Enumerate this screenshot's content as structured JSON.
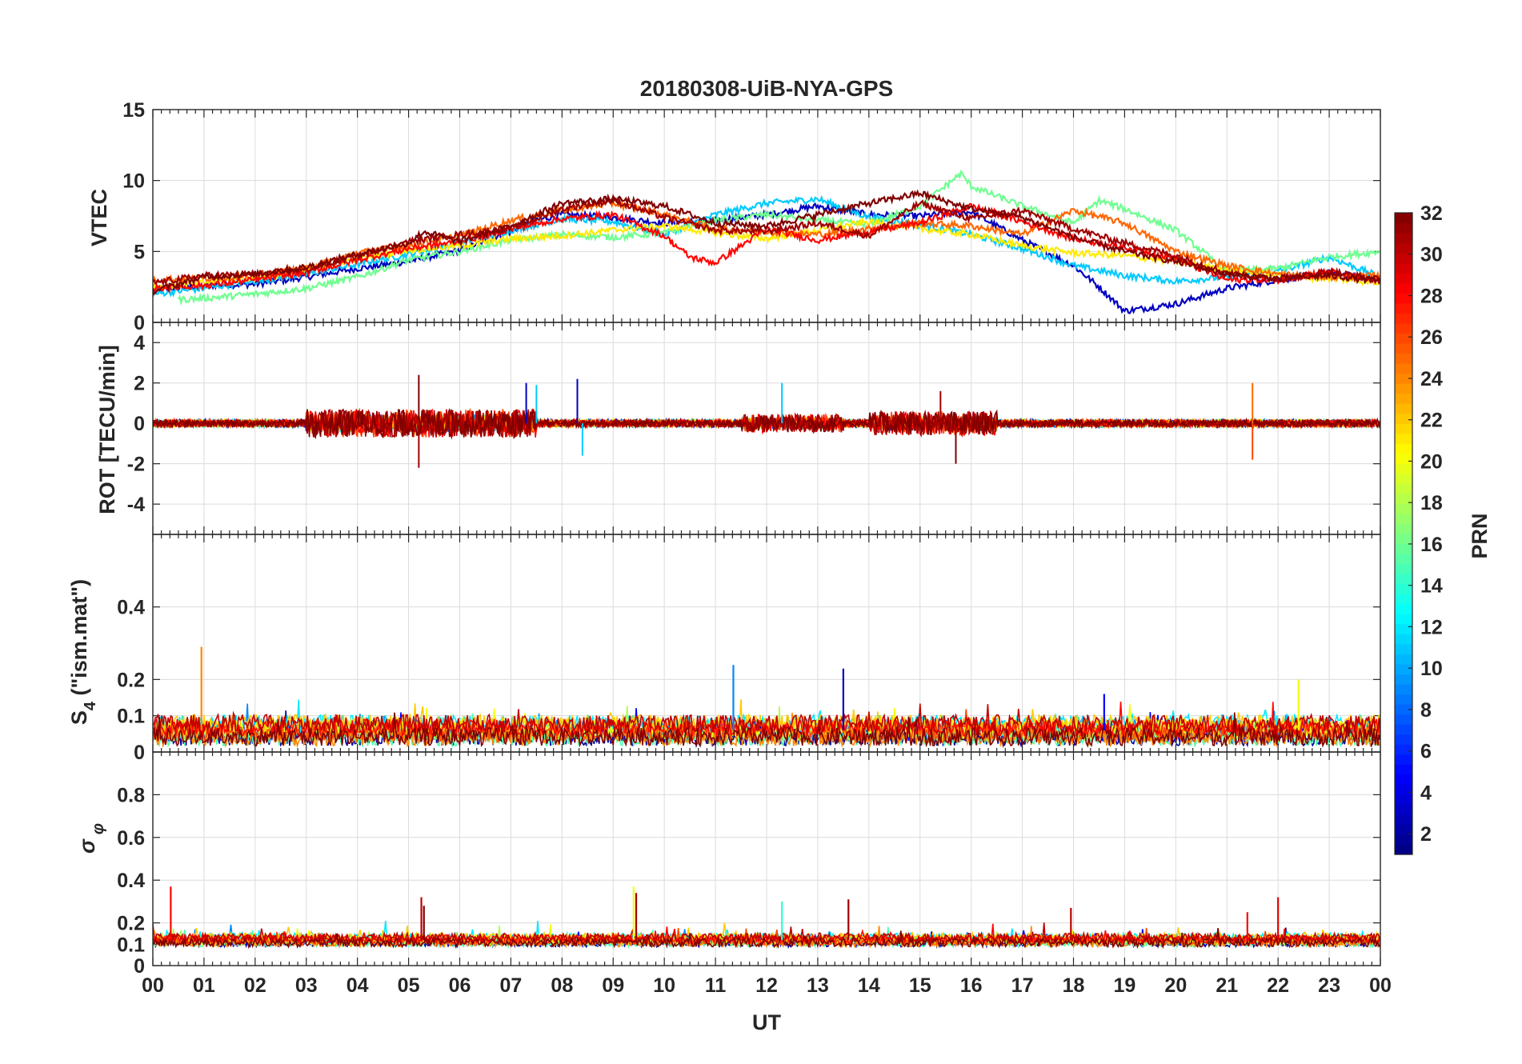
{
  "chart_data": {
    "type": "line",
    "title": "20180308-UiB-NYA-GPS",
    "xlabel": "UT",
    "x_tick_labels": [
      "00",
      "01",
      "02",
      "03",
      "04",
      "05",
      "06",
      "07",
      "08",
      "09",
      "10",
      "11",
      "12",
      "13",
      "14",
      "15",
      "16",
      "17",
      "18",
      "19",
      "20",
      "21",
      "22",
      "23",
      "00"
    ],
    "xlim": [
      0,
      24
    ],
    "panels": [
      {
        "key": "vtec",
        "ylabel": "VTEC",
        "ylim": [
          0,
          15
        ],
        "yticks": [
          0,
          5,
          10,
          15
        ],
        "ytick_labels": [
          "0",
          "5",
          "10",
          "15"
        ],
        "grid": true,
        "series": [
          {
            "prn": 3,
            "x": [
              0,
              1,
              2,
              3,
              4,
              5,
              6,
              7,
              7.5,
              8,
              9,
              10,
              11,
              12,
              13,
              14,
              15,
              16,
              17,
              18,
              18.5,
              19,
              20,
              21,
              22,
              23,
              24
            ],
            "y": [
              2.3,
              2.6,
              2.7,
              3.2,
              3.8,
              4.3,
              5.1,
              6.4,
              7.2,
              7.6,
              7.4,
              7.0,
              7.2,
              7.6,
              8.2,
              7.6,
              7.5,
              7.8,
              5.8,
              4.0,
              2.5,
              0.8,
              1.3,
              2.4,
              3.0,
              3.5,
              3.0
            ]
          },
          {
            "prn": 11,
            "x": [
              0,
              1,
              2,
              3,
              4,
              5,
              6,
              7,
              8,
              9,
              10,
              11,
              12,
              13,
              14,
              15,
              16,
              17,
              18,
              19,
              20,
              21,
              22,
              23,
              24
            ],
            "y": [
              2.0,
              2.4,
              2.9,
              3.4,
              4.1,
              4.8,
              5.6,
              6.5,
              7.3,
              7.1,
              6.2,
              7.6,
              8.4,
              8.7,
              7.4,
              6.9,
              6.2,
              5.2,
              4.0,
              3.3,
              2.9,
              3.2,
              3.6,
              4.6,
              3.2
            ]
          },
          {
            "prn": 16,
            "x": [
              0.5,
              1,
              2,
              3,
              4,
              5,
              6,
              7,
              8,
              9,
              10,
              11,
              12,
              13,
              14,
              15,
              15.8,
              16,
              17,
              18,
              18.5,
              19,
              20,
              21,
              22,
              23,
              24
            ],
            "y": [
              1.6,
              1.7,
              2.0,
              2.4,
              3.2,
              4.4,
              5.0,
              5.8,
              6.2,
              6.0,
              6.3,
              7.2,
              7.6,
              7.2,
              6.9,
              8.2,
              10.5,
              9.6,
              8.2,
              7.0,
              8.6,
              8.0,
              6.5,
              3.6,
              3.8,
              4.6,
              5.0
            ]
          },
          {
            "prn": 21,
            "x": [
              0,
              1,
              2,
              3,
              4,
              5,
              6,
              7,
              8,
              9,
              10,
              11,
              12,
              13,
              14,
              15,
              16,
              17,
              18,
              19,
              20,
              21,
              22,
              23,
              24
            ],
            "y": [
              2.5,
              2.8,
              3.2,
              3.7,
              4.5,
              5.1,
              5.4,
              5.9,
              6.1,
              6.5,
              6.8,
              6.3,
              5.9,
              6.5,
              7.1,
              6.6,
              6.2,
              5.4,
              4.9,
              4.7,
              4.3,
              3.7,
              3.3,
              3.1,
              2.8
            ]
          },
          {
            "prn": 25,
            "x": [
              0,
              1,
              2,
              3,
              4,
              5,
              6,
              7,
              8,
              9,
              10,
              11,
              12,
              13,
              14,
              15,
              16,
              17,
              18,
              19,
              20,
              21,
              22,
              23,
              24
            ],
            "y": [
              3.0,
              3.1,
              3.3,
              3.8,
              4.9,
              5.4,
              6.1,
              7.2,
              7.9,
              8.4,
              7.6,
              6.6,
              6.4,
              6.2,
              6.6,
              7.0,
              6.8,
              6.2,
              7.9,
              7.0,
              5.0,
              4.0,
              3.4,
              3.2,
              3.3
            ]
          },
          {
            "prn": 28,
            "x": [
              0,
              1,
              2,
              3,
              4,
              5,
              6,
              7,
              8,
              9,
              10,
              10.5,
              11,
              12,
              13,
              14,
              15,
              16,
              17,
              18,
              19,
              20,
              21,
              22,
              23,
              24
            ],
            "y": [
              2.4,
              2.6,
              3.0,
              3.5,
              4.4,
              5.2,
              5.7,
              6.6,
              7.3,
              7.6,
              6.1,
              4.6,
              4.2,
              6.6,
              5.8,
              6.4,
              7.0,
              8.2,
              7.1,
              5.9,
              5.3,
              4.5,
              3.0,
              3.0,
              3.6,
              2.8
            ]
          },
          {
            "prn": 31,
            "x": [
              0,
              1,
              2,
              3,
              4,
              5,
              6,
              7,
              8,
              9,
              10,
              11,
              12,
              13,
              14,
              15,
              16,
              17,
              18,
              19,
              20,
              21,
              22,
              23,
              24
            ],
            "y": [
              2.8,
              3.3,
              3.4,
              3.7,
              4.7,
              5.7,
              6.2,
              6.6,
              8.0,
              8.6,
              7.4,
              6.5,
              6.4,
              7.0,
              6.1,
              8.4,
              7.3,
              7.9,
              6.6,
              5.6,
              4.7,
              3.5,
              3.0,
              3.6,
              3.0
            ]
          },
          {
            "prn": 32,
            "x": [
              0,
              1,
              2,
              3,
              4,
              5,
              5.3,
              6,
              7,
              8,
              9,
              10,
              11,
              12,
              13,
              14,
              15,
              16,
              17,
              18,
              19,
              20,
              21,
              22,
              23,
              24
            ],
            "y": [
              2.2,
              3.2,
              3.4,
              3.9,
              4.8,
              5.6,
              6.4,
              5.7,
              6.8,
              8.4,
              8.7,
              8.2,
              7.0,
              6.8,
              7.6,
              8.4,
              9.1,
              8.0,
              7.4,
              6.0,
              5.0,
              4.3,
              3.4,
              3.1,
              3.3,
              2.9
            ]
          }
        ]
      },
      {
        "key": "rot",
        "ylabel": "ROT [TECU/min]",
        "ylim": [
          -5.5,
          5
        ],
        "yticks": [
          -4,
          -2,
          0,
          2,
          4
        ],
        "ytick_labels": [
          "-4",
          "-2",
          "0",
          "2",
          "4"
        ],
        "grid": true,
        "noise_base": 0.18,
        "activity_windows": [
          [
            3,
            7.5,
            0.7
          ],
          [
            11.5,
            13.5,
            0.45
          ],
          [
            14,
            16.5,
            0.6
          ]
        ],
        "spikes": [
          {
            "x": 5.2,
            "y": 2.4,
            "prn": 32
          },
          {
            "x": 5.2,
            "y": -2.2,
            "prn": 31
          },
          {
            "x": 7.3,
            "y": 2.0,
            "prn": 3
          },
          {
            "x": 7.5,
            "y": 1.9,
            "prn": 11
          },
          {
            "x": 8.3,
            "y": 2.2,
            "prn": 3
          },
          {
            "x": 8.4,
            "y": -1.6,
            "prn": 11
          },
          {
            "x": 12.3,
            "y": 2.0,
            "prn": 11
          },
          {
            "x": 15.4,
            "y": 1.6,
            "prn": 31
          },
          {
            "x": 15.7,
            "y": -2.0,
            "prn": 32
          },
          {
            "x": 21.5,
            "y": 2.0,
            "prn": 25
          },
          {
            "x": 21.5,
            "y": -1.8,
            "prn": 26
          }
        ]
      },
      {
        "key": "s4",
        "ylabel": "S4 (\"ism.mat\")",
        "ylabel_main": "S",
        "ylabel_sub": "4",
        "ylabel_tail": " (\"ism.mat\")",
        "ylim": [
          0,
          0.6
        ],
        "yticks": [
          0,
          0.1,
          0.2,
          0.4
        ],
        "ytick_labels": [
          "0",
          "0.1",
          "0.2",
          "0.4"
        ],
        "grid": true,
        "baseline": 0.06,
        "noise_base": 0.025,
        "spikes": [
          {
            "x": 0.95,
            "y": 0.29,
            "prn": 24
          },
          {
            "x": 11.35,
            "y": 0.24,
            "prn": 9
          },
          {
            "x": 13.5,
            "y": 0.23,
            "prn": 3
          },
          {
            "x": 22.4,
            "y": 0.2,
            "prn": 20
          },
          {
            "x": 18.6,
            "y": 0.16,
            "prn": 5
          }
        ]
      },
      {
        "key": "sigma",
        "ylabel": "σ φ",
        "ylabel_main": "σ",
        "ylabel_sub": "φ",
        "ylim": [
          0,
          1
        ],
        "yticks": [
          0,
          0.1,
          0.2,
          0.4,
          0.6,
          0.8
        ],
        "ytick_labels": [
          "0",
          "0.1",
          "0.2",
          "0.4",
          "0.6",
          "0.8"
        ],
        "grid": true,
        "baseline": 0.12,
        "noise_base": 0.02,
        "spikes": [
          {
            "x": 0.35,
            "y": 0.37,
            "prn": 28
          },
          {
            "x": 5.25,
            "y": 0.32,
            "prn": 30
          },
          {
            "x": 5.3,
            "y": 0.28,
            "prn": 32
          },
          {
            "x": 9.4,
            "y": 0.37,
            "prn": 20
          },
          {
            "x": 9.45,
            "y": 0.34,
            "prn": 31
          },
          {
            "x": 12.3,
            "y": 0.3,
            "prn": 14
          },
          {
            "x": 13.6,
            "y": 0.31,
            "prn": 31
          },
          {
            "x": 17.95,
            "y": 0.27,
            "prn": 30
          },
          {
            "x": 21.4,
            "y": 0.25,
            "prn": 28
          },
          {
            "x": 22.0,
            "y": 0.32,
            "prn": 29
          }
        ]
      }
    ],
    "colorbar": {
      "label": "PRN",
      "range": [
        1,
        32
      ],
      "tick_values": [
        2,
        4,
        6,
        8,
        10,
        12,
        14,
        16,
        18,
        20,
        22,
        24,
        26,
        28,
        30,
        32
      ],
      "tick_labels": [
        "2",
        "4",
        "6",
        "8",
        "10",
        "12",
        "14",
        "16",
        "18",
        "20",
        "22",
        "24",
        "26",
        "28",
        "30",
        "32"
      ],
      "colormap": "jet"
    },
    "grid": true
  }
}
